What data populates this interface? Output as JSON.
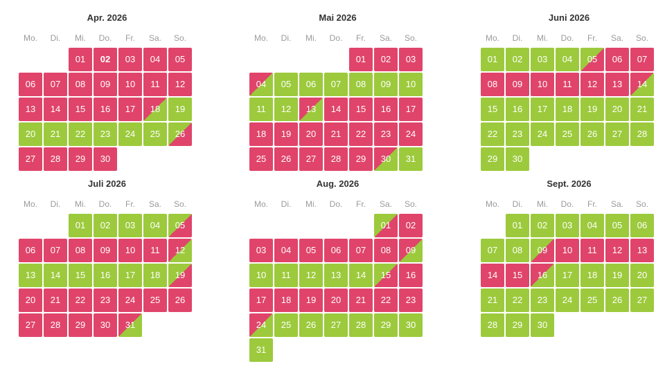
{
  "colors": {
    "booked": "#e0446a",
    "free": "#9cca3c",
    "title": "#333333",
    "weekday": "#9a9a9a"
  },
  "weekdays": [
    "Mo.",
    "Di.",
    "Mi.",
    "Do.",
    "Fr.",
    "Sa.",
    "So."
  ],
  "legend_codes": {
    "b": "booked",
    "f": "free",
    "bf": "booked-morning / free-afternoon (diagonal)",
    "fb": "free-morning / booked-afternoon (diagonal)"
  },
  "months": [
    {
      "title": "Apr. 2026",
      "offset": 2,
      "highlight_day": 2,
      "days": [
        "b",
        "b",
        "b",
        "b",
        "b",
        "b",
        "b",
        "b",
        "b",
        "b",
        "b",
        "b",
        "b",
        "b",
        "b",
        "b",
        "b",
        "bf",
        "f",
        "f",
        "f",
        "f",
        "f",
        "f",
        "f",
        "fb",
        "b",
        "b",
        "b",
        "b"
      ]
    },
    {
      "title": "Mai 2026",
      "offset": 4,
      "days": [
        "b",
        "b",
        "b",
        "bf",
        "f",
        "f",
        "f",
        "f",
        "f",
        "f",
        "f",
        "f",
        "bf",
        "b",
        "b",
        "b",
        "b",
        "b",
        "b",
        "b",
        "b",
        "b",
        "b",
        "b",
        "b",
        "b",
        "b",
        "b",
        "b",
        "bf",
        "f"
      ]
    },
    {
      "title": "Juni 2026",
      "offset": 0,
      "days": [
        "f",
        "f",
        "f",
        "f",
        "fb",
        "b",
        "b",
        "b",
        "b",
        "b",
        "b",
        "b",
        "b",
        "bf",
        "f",
        "f",
        "f",
        "f",
        "f",
        "f",
        "f",
        "f",
        "f",
        "f",
        "f",
        "f",
        "f",
        "f",
        "f",
        "f"
      ]
    },
    {
      "title": "Juli 2026",
      "offset": 2,
      "days": [
        "f",
        "f",
        "f",
        "f",
        "fb",
        "b",
        "b",
        "b",
        "b",
        "b",
        "b",
        "bf",
        "f",
        "f",
        "f",
        "f",
        "f",
        "f",
        "fb",
        "b",
        "b",
        "b",
        "b",
        "b",
        "b",
        "b",
        "b",
        "b",
        "b",
        "b",
        "bf"
      ]
    },
    {
      "title": "Aug. 2026",
      "offset": 5,
      "days": [
        "fb",
        "b",
        "b",
        "b",
        "b",
        "b",
        "b",
        "b",
        "bf",
        "f",
        "f",
        "f",
        "f",
        "f",
        "fb",
        "b",
        "b",
        "b",
        "b",
        "b",
        "b",
        "b",
        "b",
        "bf",
        "f",
        "f",
        "f",
        "f",
        "f",
        "f",
        "f"
      ]
    },
    {
      "title": "Sept. 2026",
      "offset": 1,
      "days": [
        "f",
        "f",
        "f",
        "f",
        "f",
        "f",
        "f",
        "f",
        "fb",
        "b",
        "b",
        "b",
        "b",
        "b",
        "b",
        "bf",
        "f",
        "f",
        "f",
        "f",
        "f",
        "f",
        "f",
        "f",
        "f",
        "f",
        "f",
        "f",
        "f",
        "f"
      ]
    }
  ]
}
